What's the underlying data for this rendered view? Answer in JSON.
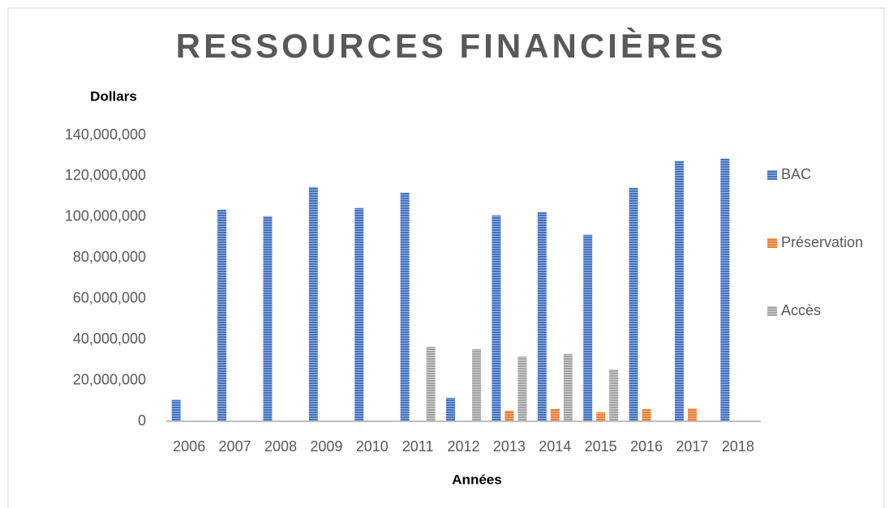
{
  "chart_data": {
    "type": "bar",
    "title": "RESSOURCES FINANCIÈRES",
    "y_label": "Dollars",
    "x_label": "Années",
    "categories": [
      "2006",
      "2007",
      "2008",
      "2009",
      "2010",
      "2011",
      "2012",
      "2013",
      "2014",
      "2015",
      "2016",
      "2017",
      "2018"
    ],
    "series": [
      {
        "name": "BAC",
        "color": "#4472c4",
        "values": [
          10500000,
          103600000,
          100400000,
          114700000,
          104400000,
          111900000,
          11500000,
          100800000,
          102400000,
          91300000,
          114300000,
          127400000,
          128600000
        ]
      },
      {
        "name": "Préservation",
        "color": "#ed7d31",
        "values": [
          0,
          0,
          0,
          0,
          0,
          0,
          0,
          5200000,
          6000000,
          4400000,
          6000000,
          6300000,
          0
        ]
      },
      {
        "name": "Accès",
        "color": "#a5a5a5",
        "values": [
          0,
          0,
          0,
          0,
          0,
          36500000,
          35300000,
          31700000,
          33000000,
          25400000,
          0,
          0,
          0
        ]
      }
    ],
    "ylim": [
      0,
      140000000
    ],
    "yticks": [
      0,
      {
        "value": 20000000,
        "label": "20,000,000"
      },
      {
        "value": 40000000,
        "label": "40,000,000"
      },
      {
        "value": 60000000,
        "label": "60,000,000"
      },
      {
        "value": 80000000,
        "label": "80,000,000"
      },
      {
        "value": 100000000,
        "label": "100,000,000"
      },
      {
        "value": 120000000,
        "label": "120,000,000"
      },
      {
        "value": 140000000,
        "label": "140,000,000"
      }
    ],
    "grid": false,
    "legend": "right"
  }
}
